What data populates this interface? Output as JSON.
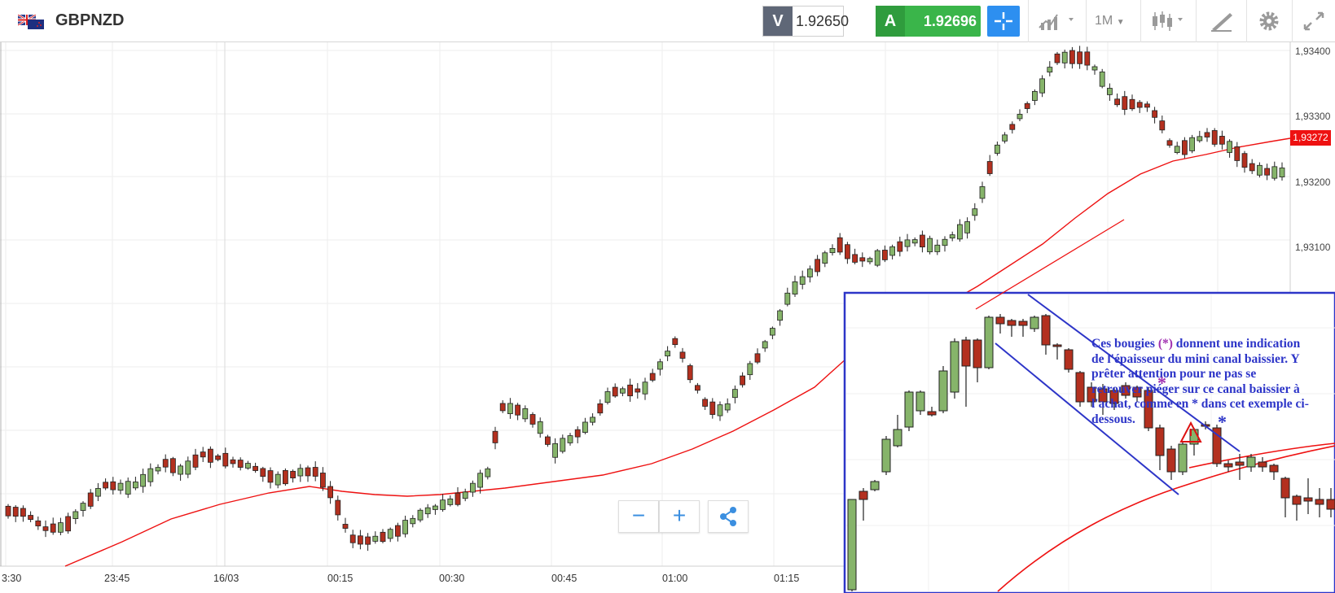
{
  "toolbar": {
    "symbol": "GBPNZD",
    "flag_icon": "gb-nz-flag-icon",
    "sell_label": "V",
    "sell_price": "1.92650",
    "buy_label": "A",
    "buy_price": "1.92696",
    "timeframe": "1M",
    "icons": [
      "crosshair-icon",
      "chart-type-icon",
      "candlestick-icon",
      "drawing-tool-icon",
      "gear-icon",
      "fullscreen-icon"
    ]
  },
  "chart": {
    "price_labels": [
      "1,93400",
      "1,93300",
      "1,93200",
      "1,93100"
    ],
    "current_price": "1,93272",
    "time_labels": [
      "3:30",
      "23:45",
      "16/03",
      "00:15",
      "00:30",
      "00:45",
      "01:00",
      "01:15"
    ],
    "moving_average_color": "#ee1111",
    "up_candle_color": "#86b46a",
    "down_candle_color": "#b3301f"
  },
  "zoom": {
    "minus_label": "−",
    "plus_label": "+",
    "share_icon": "share-icon"
  },
  "annotation": {
    "line1_pre": "Ces bougies ",
    "line1_mark": "(*)",
    "line1_post": " donnent une indication",
    "line2": "de l'épaisseur du mini canal baissier. Y",
    "line3": "prêter attention pour ne pas se",
    "line4": "retrouver piéger sur ce canal baissier à",
    "line5": "l'achat, comme en * dans cet exemple ci-",
    "line6": "dessous.",
    "star_purple": "*",
    "star_blue": "*"
  }
}
